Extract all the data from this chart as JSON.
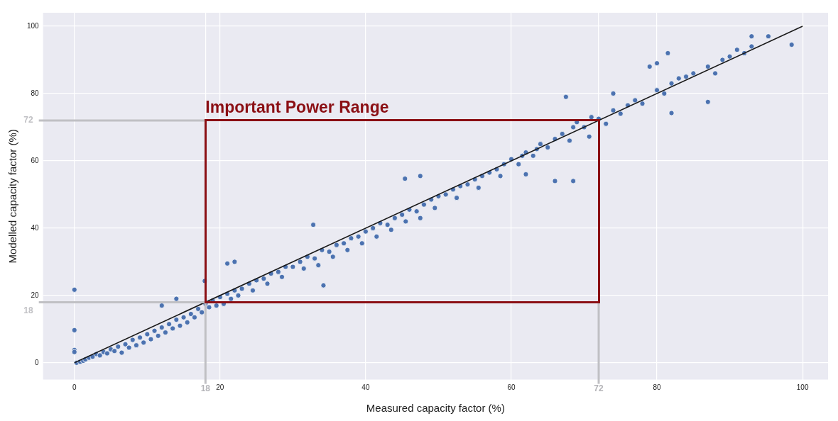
{
  "chart_data": {
    "type": "scatter",
    "xlabel": "Measured capacity factor (%)",
    "ylabel": "Modelled capacity factor (%)",
    "xlim": [
      -4.3,
      103.5
    ],
    "ylim": [
      -5,
      104
    ],
    "xticks": [
      0,
      {
        "value": 18,
        "label": "18"
      },
      20,
      40,
      60,
      {
        "value": 72,
        "label": "72"
      },
      80,
      100
    ],
    "yticks": [
      0,
      20,
      40,
      60,
      80,
      100
    ],
    "grid": true,
    "legend": false,
    "marker": "circle",
    "series": [
      {
        "color": "#4c72b0",
        "x": [
          0.3,
          0.8,
          1.2,
          1.5,
          2,
          2.5,
          3,
          3.5,
          4,
          4.5,
          5,
          5.5,
          6,
          6.5,
          7,
          7.5,
          8,
          8.5,
          9,
          9.5,
          10,
          10.5,
          11,
          11.5,
          12,
          12.5,
          13,
          13.5,
          14,
          14.5,
          15,
          15.5,
          16,
          16.5,
          17,
          17.5,
          18,
          18.5,
          19,
          19.5,
          20,
          20.5,
          21,
          21.5,
          22,
          22.5,
          23,
          24,
          24.5,
          25,
          26,
          26.5,
          27,
          28,
          28.5,
          29,
          30,
          31,
          31.5,
          32,
          33,
          33.5,
          34,
          35,
          35.5,
          36,
          37,
          37.5,
          38,
          39,
          39.5,
          40,
          41,
          41.5,
          42,
          43,
          43.5,
          44,
          45,
          45.5,
          46,
          47,
          47.5,
          48,
          49,
          49.5,
          50,
          51,
          52,
          52.5,
          53,
          54,
          55,
          55.5,
          56,
          57,
          58,
          58.5,
          59,
          60,
          61,
          61.5,
          62,
          63,
          63.5,
          64,
          65,
          66,
          67,
          68,
          68.5,
          69,
          70,
          71,
          72,
          73,
          74,
          75,
          76,
          77,
          78,
          80,
          81,
          82,
          83,
          84,
          85,
          87,
          88,
          89,
          90,
          92,
          93,
          0,
          0,
          0,
          0,
          17.9,
          32.8,
          34.2,
          45.4,
          47.5,
          66,
          68.5,
          70.7,
          87,
          82,
          93,
          95.3,
          98.5,
          91,
          81.5,
          79,
          80,
          62,
          12,
          14,
          22,
          21,
          67.5,
          74
        ],
        "values": [
          0,
          0.3,
          0.6,
          1,
          1.5,
          1.8,
          2.6,
          2.2,
          3.2,
          2.8,
          4,
          3.5,
          4.8,
          3,
          5.5,
          4.5,
          6.8,
          5.2,
          7.5,
          6,
          8.5,
          7,
          9.5,
          8,
          10.5,
          9,
          11.5,
          10.2,
          12.8,
          11,
          13.5,
          12,
          14.5,
          13.5,
          16,
          15,
          17.5,
          16.5,
          18.5,
          17,
          19.5,
          17.5,
          20.5,
          19,
          21.5,
          20,
          22,
          23.5,
          21.5,
          24.5,
          25,
          23.5,
          26.5,
          27,
          25.5,
          28.5,
          28.5,
          30,
          28,
          31.5,
          31,
          29,
          33.5,
          33,
          31.5,
          35,
          35.5,
          33.5,
          37,
          37.5,
          35.5,
          39,
          40,
          37.5,
          41.5,
          41,
          39.5,
          43,
          44,
          42,
          45.5,
          45,
          43,
          47,
          48.5,
          46,
          49.5,
          50,
          51.5,
          49,
          52.5,
          53,
          54.5,
          52,
          55.5,
          56.5,
          57.5,
          55.5,
          59,
          60.5,
          59,
          61.5,
          62.5,
          61.5,
          63.5,
          65,
          64,
          66.5,
          68,
          66,
          70,
          71.5,
          70,
          73,
          72.5,
          71,
          75,
          74,
          76.5,
          78,
          77,
          81,
          80,
          83,
          84.5,
          85,
          86,
          88,
          86,
          90,
          91,
          92,
          94,
          21.7,
          9.7,
          3.8,
          3.2,
          24.3,
          41,
          23,
          54.7,
          55.5,
          54,
          54,
          67.2,
          77.5,
          74.2,
          97,
          97,
          94.5,
          93,
          92,
          88,
          89,
          56,
          17,
          19,
          30,
          29.5,
          79,
          80
        ]
      },
      {
        "type": "line",
        "color": "#1a1a1a",
        "marker": "none",
        "line_style": "solid",
        "x": [
          0,
          100
        ],
        "values": [
          0,
          100
        ]
      }
    ],
    "ref_lines": [
      {
        "axis": "x",
        "value": 18,
        "color": "#c0c0c4"
      },
      {
        "axis": "x",
        "value": 72,
        "color": "#c0c0c4"
      },
      {
        "axis": "y",
        "value": 18,
        "label": "18",
        "color": "#c0c0c4"
      },
      {
        "axis": "y",
        "value": 72,
        "label": "72",
        "color": "#c0c0c4"
      }
    ],
    "annotations": [
      {
        "text": "Important Power Range",
        "x": 18,
        "y": 72
      }
    ]
  }
}
